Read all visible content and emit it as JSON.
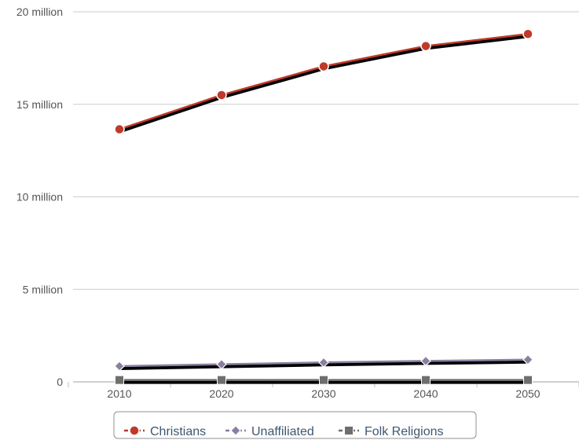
{
  "chart_data": {
    "type": "line",
    "title": "",
    "xlabel": "",
    "ylabel": "",
    "x": [
      "2010",
      "2020",
      "2030",
      "2040",
      "2050"
    ],
    "ylim": [
      0,
      20000000
    ],
    "y_ticks": [
      {
        "value": 0,
        "label": "0"
      },
      {
        "value": 5000000,
        "label": "5 million"
      },
      {
        "value": 10000000,
        "label": "10 million"
      },
      {
        "value": 15000000,
        "label": "15 million"
      },
      {
        "value": 20000000,
        "label": "20 million"
      }
    ],
    "grid": "horizontal",
    "legend_position": "bottom",
    "series": [
      {
        "name": "Christians",
        "values": [
          13650000,
          15500000,
          17050000,
          18150000,
          18800000
        ],
        "color": "#c0392b",
        "marker": "circle"
      },
      {
        "name": "Unaffiliated",
        "values": [
          850000,
          950000,
          1050000,
          1130000,
          1200000
        ],
        "color": "#8a7fa0",
        "marker": "diamond"
      },
      {
        "name": "Folk Religions",
        "values": [
          100000,
          100000,
          100000,
          100000,
          100000
        ],
        "color": "#6e6e6e",
        "marker": "square"
      }
    ]
  }
}
